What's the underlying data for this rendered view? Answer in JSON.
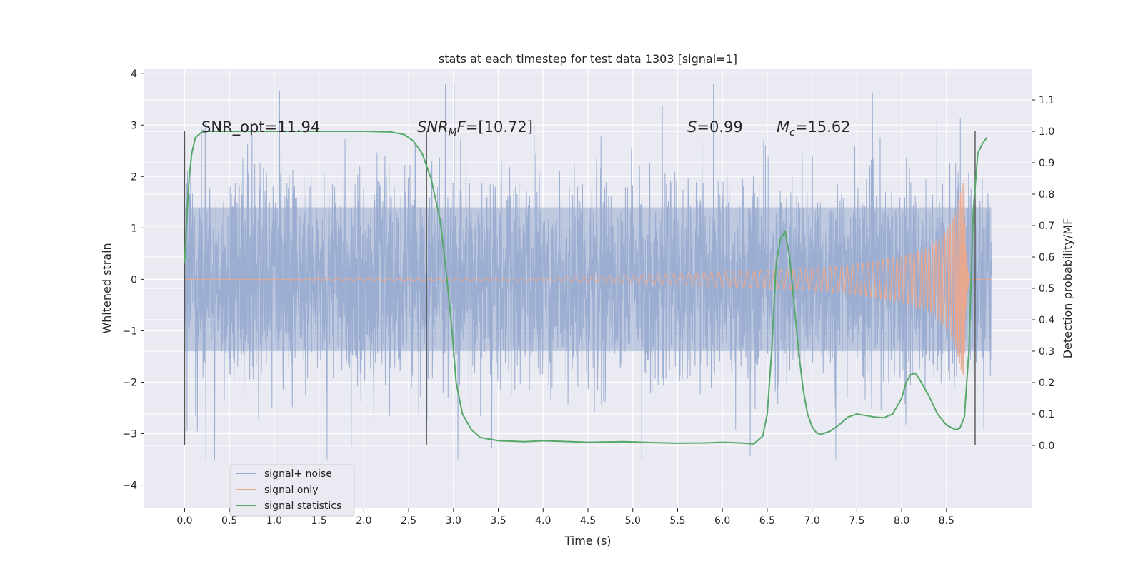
{
  "chart_data": {
    "type": "line",
    "title": "stats at each timestep for test data 1303 [signal=1]",
    "xlabel": "Time (s)",
    "ylabel_left": "Whitened strain",
    "ylabel_right": "Detection probability/MF",
    "xlim": [
      -0.45,
      9.45
    ],
    "ylim_left": [
      -4.45,
      4.1
    ],
    "ylim_right": [
      -0.2,
      1.2
    ],
    "x_ticks": [
      0.0,
      0.5,
      1.0,
      1.5,
      2.0,
      2.5,
      3.0,
      3.5,
      4.0,
      4.5,
      5.0,
      5.5,
      6.0,
      6.5,
      7.0,
      7.5,
      8.0,
      8.5
    ],
    "x_tick_labels": [
      "0.0",
      "0.5",
      "1.0",
      "1.5",
      "2.0",
      "2.5",
      "3.0",
      "3.5",
      "4.0",
      "4.5",
      "5.0",
      "5.5",
      "6.0",
      "6.5",
      "7.0",
      "7.5",
      "8.0",
      "8.5"
    ],
    "y_left_ticks": [
      -4,
      -3,
      -2,
      -1,
      0,
      1,
      2,
      3,
      4
    ],
    "y_left_tick_labels": [
      "−4",
      "−3",
      "−2",
      "−1",
      "0",
      "1",
      "2",
      "3",
      "4"
    ],
    "y_right_ticks": [
      0.0,
      0.1,
      0.2,
      0.3,
      0.4,
      0.5,
      0.6,
      0.7,
      0.8,
      0.9,
      1.0,
      1.1
    ],
    "y_right_tick_labels": [
      "0.0",
      "0.1",
      "0.2",
      "0.3",
      "0.4",
      "0.5",
      "0.6",
      "0.7",
      "0.8",
      "0.9",
      "1.0",
      "1.1"
    ],
    "series": [
      {
        "name": "signal+ noise",
        "color": "#99acd0",
        "axis": "left",
        "x_range": [
          0.0,
          9.0
        ],
        "typical_band": [
          -1.4,
          1.4
        ],
        "extremes": [
          -3.5,
          3.8
        ]
      },
      {
        "name": "signal only",
        "color": "#e8a890",
        "axis": "left",
        "description_peak_time": 8.7,
        "envelope_x": [
          0.0,
          4.0,
          5.0,
          6.0,
          7.0,
          7.5,
          8.0,
          8.3,
          8.5,
          8.6,
          8.65,
          8.7
        ],
        "envelope_y": [
          0.0,
          0.03,
          0.08,
          0.15,
          0.22,
          0.3,
          0.45,
          0.62,
          0.95,
          1.3,
          1.7,
          2.0
        ]
      },
      {
        "name": "signal statistics",
        "color": "#55a868",
        "axis": "right",
        "x": [
          0.0,
          0.02,
          0.05,
          0.08,
          0.12,
          0.18,
          0.25,
          0.4,
          0.8,
          1.5,
          2.0,
          2.3,
          2.45,
          2.55,
          2.65,
          2.75,
          2.85,
          2.92,
          2.98,
          3.03,
          3.1,
          3.2,
          3.3,
          3.5,
          3.8,
          4.0,
          4.2,
          4.5,
          4.9,
          5.2,
          5.5,
          5.8,
          6.0,
          6.2,
          6.35,
          6.45,
          6.5,
          6.55,
          6.6,
          6.65,
          6.7,
          6.75,
          6.8,
          6.85,
          6.9,
          6.95,
          7.0,
          7.05,
          7.1,
          7.2,
          7.3,
          7.4,
          7.5,
          7.6,
          7.7,
          7.8,
          7.9,
          8.0,
          8.05,
          8.1,
          8.15,
          8.2,
          8.3,
          8.4,
          8.5,
          8.6,
          8.65,
          8.7,
          8.75,
          8.8,
          8.85,
          8.9,
          8.95
        ],
        "values": [
          0.58,
          0.7,
          0.85,
          0.93,
          0.98,
          0.995,
          1.0,
          1.0,
          1.0,
          1.0,
          1.0,
          0.998,
          0.99,
          0.97,
          0.93,
          0.85,
          0.72,
          0.55,
          0.38,
          0.2,
          0.1,
          0.05,
          0.025,
          0.015,
          0.012,
          0.015,
          0.013,
          0.01,
          0.012,
          0.009,
          0.007,
          0.008,
          0.01,
          0.008,
          0.005,
          0.03,
          0.1,
          0.3,
          0.58,
          0.66,
          0.68,
          0.6,
          0.45,
          0.3,
          0.18,
          0.1,
          0.06,
          0.04,
          0.035,
          0.045,
          0.065,
          0.09,
          0.1,
          0.095,
          0.09,
          0.088,
          0.1,
          0.15,
          0.2,
          0.225,
          0.23,
          0.21,
          0.16,
          0.1,
          0.065,
          0.05,
          0.055,
          0.09,
          0.3,
          0.75,
          0.93,
          0.96,
          0.98
        ]
      }
    ],
    "vertical_lines_x": [
      0.0,
      2.7,
      8.82
    ],
    "vertical_lines_color": "#555555",
    "annotations": [
      {
        "key": "snr_opt",
        "text": "SNR_opt=11.94",
        "x": 0.2,
        "y": 1.0
      },
      {
        "key": "snr_mf",
        "text": "=[10.72]",
        "x": 2.6,
        "y": 1.0,
        "math_main": "SNR",
        "math_sub": "M",
        "math_tail": "F"
      },
      {
        "key": "s",
        "text": "=0.99",
        "x": 5.6,
        "y": 1.0,
        "math_main": "S"
      },
      {
        "key": "mc",
        "text": "=15.62",
        "x": 6.6,
        "y": 1.0,
        "math_main": "M",
        "math_sub": "c"
      }
    ],
    "legend": {
      "location": "lower-left",
      "entries": [
        "signal+ noise",
        "signal only",
        "signal statistics"
      ]
    },
    "grid": true,
    "background_color": "#eaeaf2",
    "grid_color": "#ffffff"
  }
}
